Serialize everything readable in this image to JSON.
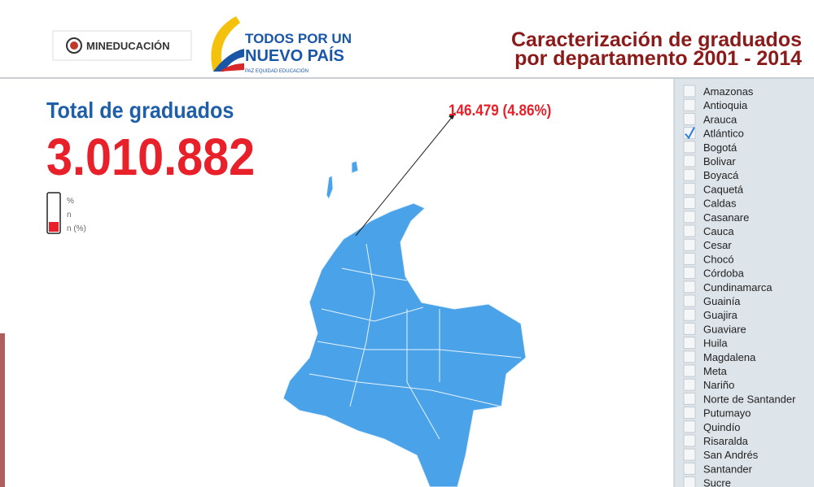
{
  "header": {
    "ministry": "MINEDUCACIÓN",
    "slogan_line1": "TODOS POR UN",
    "slogan_line2": "NUEVO PAÍS",
    "slogan_tagline": "PAZ  EQUIDAD  EDUCACIÓN",
    "title_line1": "Caracterización de graduados",
    "title_line2": "por departamento 2001 - 2014"
  },
  "summary": {
    "label": "Total de graduados",
    "value": "3.010.882"
  },
  "legend": {
    "labels": [
      "%",
      "n",
      "n (%)"
    ]
  },
  "callout": "146.479 (4.86%)",
  "departments": [
    {
      "name": "Amazonas",
      "checked": false
    },
    {
      "name": "Antioquia",
      "checked": false
    },
    {
      "name": "Arauca",
      "checked": false
    },
    {
      "name": "Atlántico",
      "checked": true
    },
    {
      "name": "Bogotá",
      "checked": false
    },
    {
      "name": "Bolivar",
      "checked": false
    },
    {
      "name": "Boyacá",
      "checked": false
    },
    {
      "name": "Caquetá",
      "checked": false
    },
    {
      "name": "Caldas",
      "checked": false
    },
    {
      "name": "Casanare",
      "checked": false
    },
    {
      "name": "Cauca",
      "checked": false
    },
    {
      "name": "Cesar",
      "checked": false
    },
    {
      "name": "Chocó",
      "checked": false
    },
    {
      "name": "Córdoba",
      "checked": false
    },
    {
      "name": "Cundinamarca",
      "checked": false
    },
    {
      "name": "Guainía",
      "checked": false
    },
    {
      "name": "Guajira",
      "checked": false
    },
    {
      "name": "Guaviare",
      "checked": false
    },
    {
      "name": "Huila",
      "checked": false
    },
    {
      "name": "Magdalena",
      "checked": false
    },
    {
      "name": "Meta",
      "checked": false
    },
    {
      "name": "Nariño",
      "checked": false
    },
    {
      "name": "Norte de Santander",
      "checked": false
    },
    {
      "name": "Putumayo",
      "checked": false
    },
    {
      "name": "Quindío",
      "checked": false
    },
    {
      "name": "Risaralda",
      "checked": false
    },
    {
      "name": "San Andrés",
      "checked": false
    },
    {
      "name": "Santander",
      "checked": false
    },
    {
      "name": "Sucre",
      "checked": false
    }
  ]
}
